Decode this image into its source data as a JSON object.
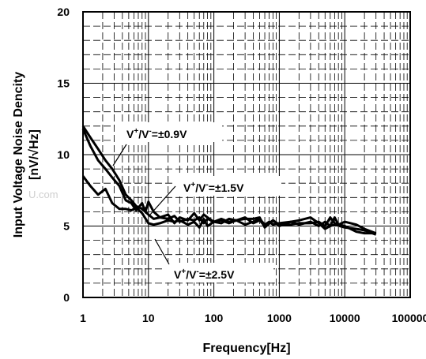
{
  "chart_data": {
    "type": "line",
    "xlabel": "Frequency[Hz]",
    "ylabel_line1": "Input Voltage Noise Dencity",
    "ylabel_line2": "[nV/√Hz]",
    "x_scale": "log",
    "xlim": [
      1,
      100000
    ],
    "ylim": [
      0,
      20
    ],
    "x_ticks": [
      1,
      10,
      100,
      1000,
      10000,
      100000
    ],
    "x_tick_labels": [
      "1",
      "10",
      "100",
      "1000",
      "10000",
      "100000"
    ],
    "y_ticks": [
      0,
      5,
      10,
      15,
      20
    ],
    "y_tick_labels": [
      "0",
      "5",
      "10",
      "15",
      "20"
    ],
    "grid": true,
    "legend": "none",
    "watermark": "U.com",
    "series": [
      {
        "x": [
          1,
          1.3,
          1.7,
          2.2,
          2.8,
          3.6,
          4.5,
          5.5,
          6.5,
          8,
          10,
          12,
          15,
          20,
          25,
          30,
          40,
          50,
          60,
          70,
          80,
          100,
          130,
          170,
          220,
          300,
          400,
          500,
          600,
          700,
          800,
          1000,
          1500,
          2000,
          3000,
          4000,
          5000,
          6000,
          7000,
          10000,
          15000,
          20000,
          30000
        ],
        "y": [
          12,
          11.2,
          10.4,
          9.6,
          9,
          8.2,
          7.2,
          6.8,
          6.4,
          6.2,
          5.8,
          5.5,
          5.6,
          5.5,
          5.7,
          5.3,
          5.5,
          5.4,
          5.6,
          5.2,
          5.5,
          5.3,
          5.4,
          5.2,
          5.4,
          5.1,
          5.3,
          5.5,
          5.1,
          5.3,
          5.1,
          5.2,
          5.3,
          5.1,
          5.3,
          5.0,
          5.3,
          5.0,
          5.1,
          4.9,
          4.8,
          4.7,
          4.4
        ]
      },
      {
        "x": [
          1,
          1.3,
          1.7,
          2.2,
          2.8,
          3.6,
          4.5,
          5.5,
          6.5,
          8,
          9,
          10,
          12,
          15,
          20,
          25,
          30,
          40,
          50,
          60,
          70,
          80,
          100,
          130,
          170,
          220,
          300,
          400,
          500,
          600,
          800,
          1000,
          1500,
          2000,
          3000,
          4000,
          5000,
          6000,
          7000,
          10000,
          15000,
          20000,
          30000
        ],
        "y": [
          11.8,
          10.6,
          9.6,
          9.0,
          8.4,
          7.8,
          6.8,
          6.6,
          6.1,
          6.6,
          6.0,
          6.7,
          6.0,
          5.6,
          5.8,
          5.2,
          5.6,
          5.4,
          5.9,
          5.4,
          5.8,
          5.6,
          5.3,
          5.5,
          5.3,
          5.4,
          5.6,
          5.2,
          5.4,
          5.0,
          5.4,
          5.1,
          5.1,
          5.2,
          5.2,
          5.3,
          5.0,
          5.6,
          5.2,
          5.0,
          4.6,
          4.5,
          4.5
        ]
      },
      {
        "x": [
          1,
          1.3,
          1.7,
          2.2,
          2.8,
          3.6,
          4.5,
          5.5,
          6.5,
          8,
          10,
          12,
          15,
          20,
          25,
          30,
          40,
          50,
          60,
          70,
          80,
          100,
          130,
          170,
          220,
          300,
          400,
          500,
          600,
          800,
          1000,
          1500,
          2000,
          3000,
          4000,
          5000,
          6000,
          7000,
          8000,
          10000,
          15000,
          20000,
          30000
        ],
        "y": [
          8.5,
          7.8,
          7.2,
          7.6,
          6.6,
          6.2,
          6.2,
          6.1,
          6.3,
          5.9,
          5.2,
          5.1,
          5.2,
          5.4,
          5.3,
          5.4,
          5.1,
          5.3,
          4.9,
          5.5,
          5.0,
          5.3,
          5.2,
          5.5,
          5.4,
          5.5,
          5.5,
          5.6,
          4.9,
          5.4,
          5.0,
          5.3,
          5.4,
          5.6,
          5.2,
          4.8,
          5.0,
          5.6,
          5.1,
          5.3,
          5.1,
          4.8,
          4.5
        ]
      }
    ],
    "annotations": [
      {
        "pre": "V",
        "sup1": "+",
        "mid": "/V",
        "sup2": "-",
        "post": "=±0.9V"
      },
      {
        "pre": "V",
        "sup1": "+",
        "mid": "/V",
        "sup2": "-",
        "post": "=±1.5V"
      },
      {
        "pre": "V",
        "sup1": "+",
        "mid": "/V",
        "sup2": "-",
        "post": "=±2.5V"
      }
    ]
  }
}
